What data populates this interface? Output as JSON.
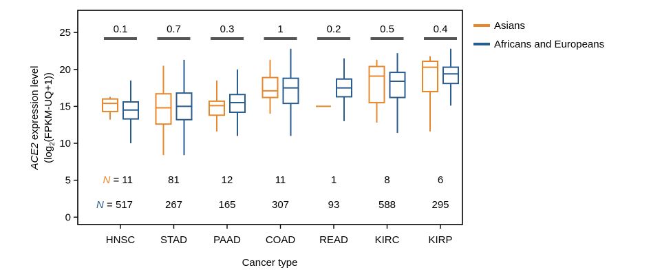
{
  "chart_data": {
    "type": "boxplot",
    "xlabel": "Cancer type",
    "ylabel_italic": "ACE2",
    "ylabel_line1_rest": " expression level",
    "ylabel_line2_pre": "(log",
    "ylabel_line2_sub": "2",
    "ylabel_line2_post": "(FPKM-UQ+1))",
    "ylim": [
      -1,
      28
    ],
    "yticks": [
      0,
      5,
      10,
      15,
      20,
      25
    ],
    "categories": [
      "HNSC",
      "STAD",
      "PAAD",
      "COAD",
      "READ",
      "KIRC",
      "KIRP"
    ],
    "pvalues": [
      "0.1",
      "0.7",
      "0.3",
      "1",
      "0.2",
      "0.5",
      "0.4"
    ],
    "n_prefix": "N",
    "n_eq": " = ",
    "series": [
      {
        "name": "Asians",
        "color": "#E8882C",
        "n": [
          "11",
          "81",
          "12",
          "11",
          "1",
          "8",
          "6"
        ],
        "boxes": [
          {
            "min": 13.2,
            "q1": 14.3,
            "median": 15.4,
            "q3": 16.0,
            "max": 16.3
          },
          {
            "min": 8.4,
            "q1": 12.6,
            "median": 14.8,
            "q3": 16.7,
            "max": 20.5
          },
          {
            "min": 11.6,
            "q1": 13.8,
            "median": 15.1,
            "q3": 15.7,
            "max": 18.5
          },
          {
            "min": 14.0,
            "q1": 16.2,
            "median": 17.1,
            "q3": 18.9,
            "max": 21.3
          },
          {
            "min": 15.0,
            "q1": 15.0,
            "median": 15.0,
            "q3": 15.0,
            "max": 15.0
          },
          {
            "min": 12.8,
            "q1": 15.5,
            "median": 19.1,
            "q3": 20.4,
            "max": 21.3
          },
          {
            "min": 11.6,
            "q1": 17.0,
            "median": 20.3,
            "q3": 21.1,
            "max": 21.8
          }
        ]
      },
      {
        "name": "Africans and Europeans",
        "color": "#2B5C8F",
        "n": [
          "517",
          "267",
          "165",
          "307",
          "93",
          "588",
          "295"
        ],
        "boxes": [
          {
            "min": 10.0,
            "q1": 13.3,
            "median": 14.5,
            "q3": 15.6,
            "max": 18.5
          },
          {
            "min": 8.4,
            "q1": 13.2,
            "median": 15.0,
            "q3": 16.8,
            "max": 21.3
          },
          {
            "min": 11.0,
            "q1": 14.2,
            "median": 15.5,
            "q3": 16.6,
            "max": 20.0
          },
          {
            "min": 11.0,
            "q1": 15.4,
            "median": 17.5,
            "q3": 18.8,
            "max": 22.8
          },
          {
            "min": 13.0,
            "q1": 16.3,
            "median": 17.5,
            "q3": 18.7,
            "max": 21.5
          },
          {
            "min": 11.4,
            "q1": 16.2,
            "median": 18.4,
            "q3": 19.6,
            "max": 22.2
          },
          {
            "min": 15.1,
            "q1": 18.1,
            "median": 19.4,
            "q3": 20.3,
            "max": 22.8
          }
        ]
      }
    ],
    "legend_position": "right"
  }
}
